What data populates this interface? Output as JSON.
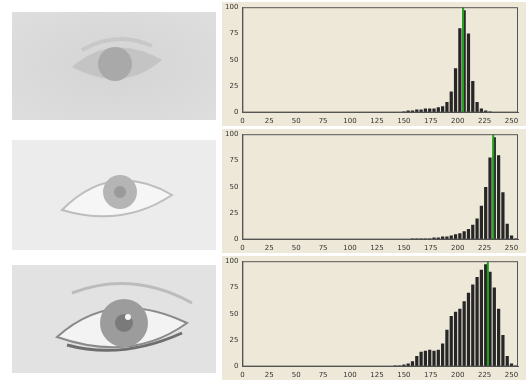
{
  "chart_data": [
    {
      "type": "histogram",
      "bins": [
        128,
        132,
        136,
        140,
        144,
        148,
        152,
        156,
        160,
        164,
        168,
        172,
        176,
        180,
        184,
        188,
        192,
        196,
        200,
        204,
        208,
        212,
        216,
        220,
        224,
        228,
        232,
        236,
        240,
        244,
        248,
        252,
        256
      ],
      "values": [
        0,
        0,
        0,
        0,
        0,
        1,
        2,
        2,
        3,
        3,
        4,
        4,
        4,
        5,
        6,
        10,
        20,
        42,
        80,
        97,
        75,
        30,
        10,
        4,
        2,
        1,
        0,
        0,
        0,
        0,
        0,
        0
      ],
      "color": "#262626",
      "xlim": [
        0,
        256
      ],
      "xticks": [
        0,
        25,
        50,
        75,
        100,
        125,
        150,
        175,
        200,
        225,
        250
      ],
      "ylim": [
        0,
        100
      ],
      "yticks": [
        0,
        25,
        50,
        75,
        100
      ],
      "grid": false,
      "highlight": {
        "value": 205,
        "color": "#1fa01f"
      }
    },
    {
      "type": "histogram",
      "bins": [
        128,
        132,
        136,
        140,
        144,
        148,
        152,
        156,
        160,
        164,
        168,
        172,
        176,
        180,
        184,
        188,
        192,
        196,
        200,
        204,
        208,
        212,
        216,
        220,
        224,
        228,
        232,
        236,
        240,
        244,
        248,
        252,
        256
      ],
      "values": [
        0,
        0,
        0,
        0,
        0,
        0,
        0,
        1,
        1,
        1,
        1,
        1,
        2,
        2,
        3,
        3,
        4,
        5,
        6,
        8,
        10,
        14,
        20,
        32,
        50,
        78,
        97,
        80,
        45,
        15,
        4,
        1
      ],
      "color": "#262626",
      "xlim": [
        0,
        256
      ],
      "xticks": [
        0,
        25,
        50,
        75,
        100,
        125,
        150,
        175,
        200,
        225,
        250
      ],
      "ylim": [
        0,
        100
      ],
      "yticks": [
        0,
        25,
        50,
        75,
        100
      ],
      "grid": false,
      "highlight": {
        "value": 233,
        "color": "#1fa01f"
      }
    },
    {
      "type": "histogram",
      "bins": [
        128,
        132,
        136,
        140,
        144,
        148,
        152,
        156,
        160,
        164,
        168,
        172,
        176,
        180,
        184,
        188,
        192,
        196,
        200,
        204,
        208,
        212,
        216,
        220,
        224,
        228,
        232,
        236,
        240,
        244,
        248,
        252,
        256
      ],
      "values": [
        0,
        0,
        0,
        1,
        1,
        2,
        3,
        5,
        10,
        14,
        15,
        16,
        15,
        16,
        22,
        35,
        48,
        52,
        55,
        62,
        70,
        78,
        85,
        92,
        97,
        90,
        75,
        55,
        30,
        10,
        3,
        1
      ],
      "color": "#262626",
      "xlim": [
        0,
        256
      ],
      "xticks": [
        0,
        25,
        50,
        75,
        100,
        125,
        150,
        175,
        200,
        225,
        250
      ],
      "ylim": [
        0,
        100
      ],
      "yticks": [
        0,
        25,
        50,
        75,
        100
      ],
      "grid": false,
      "highlight": {
        "value": 228,
        "color": "#1fa01f"
      }
    }
  ]
}
